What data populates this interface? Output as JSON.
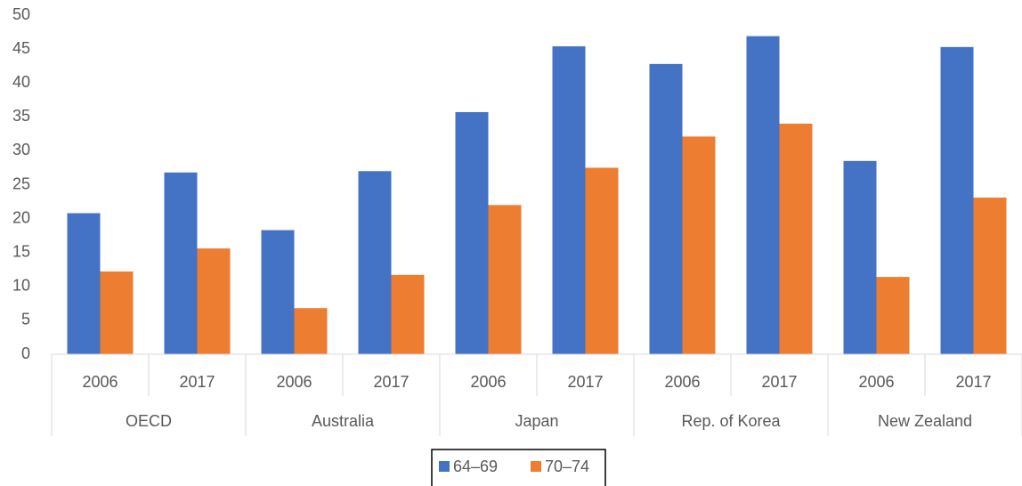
{
  "chart_data": {
    "type": "bar",
    "categories": [
      "2006",
      "2017",
      "2006",
      "2017",
      "2006",
      "2017",
      "2006",
      "2017",
      "2006",
      "2017"
    ],
    "groups": [
      "OECD",
      "Australia",
      "Japan",
      "Rep. of Korea",
      "New Zealand"
    ],
    "series": [
      {
        "name": "64–69",
        "color": "#4472c4",
        "values": [
          20.8,
          26.8,
          18.3,
          27.0,
          35.7,
          45.4,
          42.8,
          46.9,
          28.5,
          45.3
        ]
      },
      {
        "name": "70–74",
        "color": "#ed7d31",
        "values": [
          12.2,
          15.6,
          6.8,
          11.7,
          22.0,
          27.5,
          32.1,
          34.0,
          11.4,
          23.1
        ]
      }
    ],
    "ylim": [
      0,
      50
    ],
    "yticks": [
      0,
      5,
      10,
      15,
      20,
      25,
      30,
      35,
      40,
      45,
      50
    ],
    "grid": false,
    "legend": "bottom"
  }
}
